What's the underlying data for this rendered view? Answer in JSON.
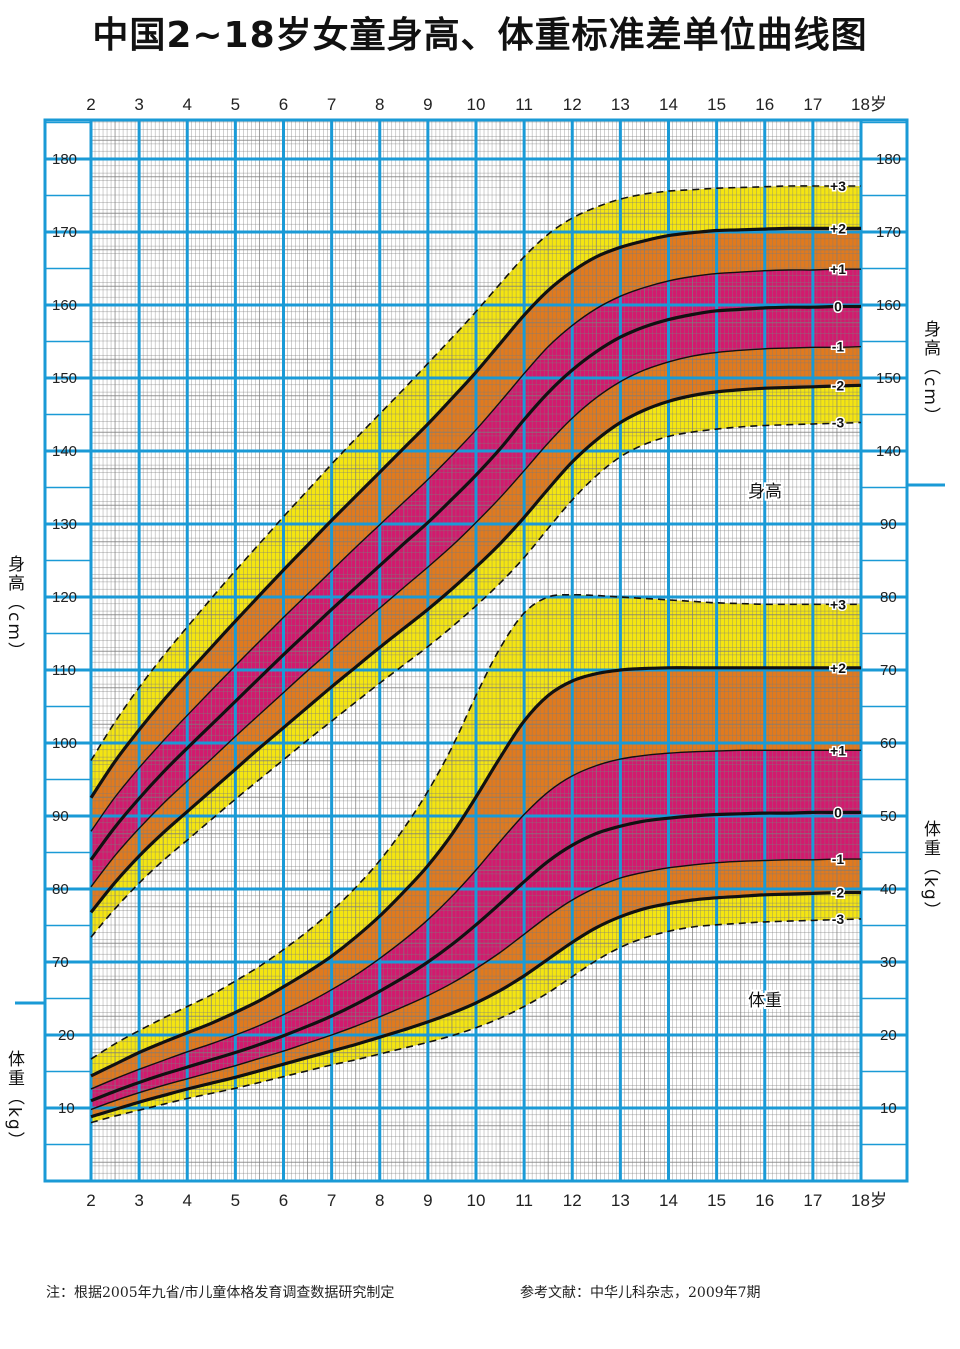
{
  "title": "中国2~18岁女童身高、体重标准差单位曲线图",
  "footnote_left": "注：根据2005年九省/市儿童体格发育调查数据研究制定",
  "footnote_right": "参考文献：中华儿科杂志，2009年7期",
  "colors": {
    "grid_major": "#1a9ad6",
    "grid_minor": "#7d7d7d",
    "band_outer": "#f4e512",
    "band_mid": "#e07a1e",
    "band_inner": "#d21a6e",
    "curve": "#111111"
  },
  "chart_data": {
    "type": "line",
    "title": "中国2~18岁女童身高、体重标准差单位曲线图",
    "x_ticks": [
      "2",
      "3",
      "4",
      "5",
      "6",
      "7",
      "8",
      "9",
      "10",
      "11",
      "12",
      "13",
      "14",
      "15",
      "16",
      "17",
      "18岁"
    ],
    "xlim": [
      2,
      18
    ],
    "x": [
      2,
      2.5,
      3,
      3.5,
      4,
      4.5,
      5,
      5.5,
      6,
      6.5,
      7,
      7.5,
      8,
      8.5,
      9,
      9.5,
      10,
      10.5,
      11,
      11.5,
      12,
      12.5,
      13,
      13.5,
      14,
      14.5,
      15,
      15.5,
      16,
      16.5,
      17,
      17.5,
      18
    ],
    "height": {
      "label": "身高",
      "ylabel": "身高（cm）",
      "ylim": [
        64,
        186
      ],
      "ticks": [
        70,
        80,
        90,
        100,
        110,
        120,
        130,
        140,
        150,
        160,
        170,
        180
      ],
      "series": [
        {
          "name": "+3",
          "values": [
            97.6,
            102.9,
            107.6,
            111.9,
            115.9,
            119.8,
            123.6,
            127.3,
            131.0,
            134.6,
            138.2,
            141.7,
            145.1,
            148.5,
            152.0,
            155.5,
            159.1,
            162.9,
            166.6,
            169.7,
            171.9,
            173.4,
            174.5,
            175.2,
            175.6,
            175.8,
            176.0,
            176.1,
            176.2,
            176.3,
            176.3,
            176.3,
            176.3
          ]
        },
        {
          "name": "+2",
          "values": [
            92.5,
            97.5,
            101.8,
            105.8,
            109.5,
            113.1,
            116.7,
            120.2,
            123.7,
            127.1,
            130.5,
            133.8,
            137.1,
            140.4,
            143.7,
            147.2,
            150.8,
            154.7,
            158.6,
            162.0,
            164.6,
            166.6,
            167.9,
            168.8,
            169.5,
            169.9,
            170.2,
            170.3,
            170.4,
            170.5,
            170.5,
            170.5,
            170.5
          ]
        },
        {
          "name": "+1",
          "values": [
            87.9,
            92.6,
            96.6,
            100.3,
            103.8,
            107.2,
            110.6,
            113.9,
            117.2,
            120.4,
            123.6,
            126.8,
            129.9,
            133.0,
            136.1,
            139.4,
            142.9,
            146.7,
            150.6,
            154.3,
            157.2,
            159.5,
            161.2,
            162.4,
            163.3,
            163.9,
            164.3,
            164.5,
            164.7,
            164.8,
            164.8,
            164.9,
            164.9
          ]
        },
        {
          "name": "0",
          "values": [
            84.0,
            88.5,
            92.4,
            96.0,
            99.3,
            102.5,
            105.7,
            108.9,
            112.1,
            115.2,
            118.3,
            121.3,
            124.3,
            127.3,
            130.2,
            133.4,
            136.7,
            140.3,
            144.3,
            148.0,
            151.1,
            153.6,
            155.6,
            157.0,
            158.0,
            158.7,
            159.2,
            159.4,
            159.6,
            159.7,
            159.7,
            159.8,
            159.8
          ]
        },
        {
          "name": "-1",
          "values": [
            80.3,
            84.6,
            88.3,
            91.7,
            94.8,
            97.8,
            100.9,
            103.9,
            106.9,
            109.9,
            112.8,
            115.7,
            118.5,
            121.3,
            124.1,
            127.0,
            130.2,
            133.6,
            137.3,
            141.1,
            144.5,
            147.3,
            149.5,
            151.1,
            152.2,
            153.0,
            153.5,
            153.8,
            154.0,
            154.1,
            154.2,
            154.2,
            154.3
          ]
        },
        {
          "name": "-2",
          "values": [
            76.8,
            80.9,
            84.5,
            87.7,
            90.6,
            93.5,
            96.4,
            99.3,
            102.1,
            104.9,
            107.7,
            110.4,
            113.1,
            115.7,
            118.3,
            121.1,
            124.1,
            127.3,
            130.9,
            134.8,
            138.5,
            141.5,
            143.9,
            145.6,
            146.8,
            147.6,
            148.1,
            148.4,
            148.6,
            148.7,
            148.8,
            148.9,
            149.0
          ]
        },
        {
          "name": "-3",
          "values": [
            73.4,
            77.3,
            80.8,
            83.9,
            86.7,
            89.5,
            92.3,
            95.0,
            97.7,
            100.4,
            103.0,
            105.6,
            108.2,
            110.7,
            113.2,
            115.9,
            118.8,
            121.9,
            125.4,
            129.4,
            133.3,
            136.6,
            139.2,
            140.9,
            142.0,
            142.6,
            143.0,
            143.3,
            143.5,
            143.6,
            143.7,
            143.8,
            143.9
          ]
        }
      ]
    },
    "weight": {
      "label": "体重",
      "ylabel": "体重（kg）",
      "ylim": [
        0,
        100
      ],
      "ticks_left": [
        10,
        20
      ],
      "ticks_right": [
        10,
        20,
        30,
        40,
        50,
        60,
        70,
        80,
        90
      ],
      "series": [
        {
          "name": "+3",
          "values": [
            16.7,
            18.8,
            20.6,
            22.3,
            23.9,
            25.5,
            27.4,
            29.4,
            31.7,
            34.2,
            37.0,
            40.2,
            43.9,
            48.3,
            53.4,
            59.4,
            66.5,
            73.0,
            77.8,
            80.0,
            80.3,
            80.2,
            80.0,
            79.8,
            79.6,
            79.4,
            79.2,
            79.1,
            79.0,
            79.0,
            79.0,
            79.0,
            79.0
          ]
        },
        {
          "name": "+2",
          "values": [
            14.4,
            16.0,
            17.6,
            19.0,
            20.3,
            21.6,
            23.1,
            24.7,
            26.6,
            28.6,
            30.8,
            33.4,
            36.3,
            39.6,
            43.2,
            47.5,
            52.6,
            58.0,
            63.0,
            66.5,
            68.5,
            69.5,
            70.0,
            70.2,
            70.3,
            70.3,
            70.3,
            70.3,
            70.3,
            70.3,
            70.3,
            70.3,
            70.3
          ]
        },
        {
          "name": "+1",
          "values": [
            12.6,
            14.0,
            15.3,
            16.5,
            17.7,
            18.8,
            20.0,
            21.3,
            22.8,
            24.4,
            26.2,
            28.2,
            30.5,
            33.0,
            35.8,
            39.0,
            42.6,
            46.5,
            50.2,
            53.3,
            55.5,
            56.9,
            57.8,
            58.3,
            58.6,
            58.8,
            58.9,
            59.0,
            59.0,
            59.0,
            59.0,
            59.0,
            59.0
          ]
        },
        {
          "name": "0",
          "values": [
            11.0,
            12.3,
            13.5,
            14.6,
            15.6,
            16.6,
            17.6,
            18.7,
            19.9,
            21.2,
            22.6,
            24.2,
            26.0,
            27.9,
            30.0,
            32.4,
            35.1,
            38.0,
            41.0,
            43.8,
            46.0,
            47.6,
            48.6,
            49.3,
            49.7,
            50.0,
            50.2,
            50.3,
            50.4,
            50.4,
            50.5,
            50.5,
            50.5
          ]
        },
        {
          "name": "-1",
          "values": [
            9.8,
            11.0,
            12.1,
            13.1,
            14.0,
            14.9,
            15.8,
            16.8,
            17.8,
            18.9,
            20.0,
            21.2,
            22.5,
            23.9,
            25.4,
            27.1,
            29.1,
            31.3,
            33.8,
            36.3,
            38.5,
            40.2,
            41.5,
            42.3,
            42.9,
            43.3,
            43.6,
            43.8,
            43.9,
            44.0,
            44.0,
            44.1,
            44.1
          ]
        },
        {
          "name": "-2",
          "values": [
            8.8,
            9.8,
            10.8,
            11.7,
            12.6,
            13.4,
            14.2,
            15.1,
            16.0,
            16.9,
            17.8,
            18.7,
            19.7,
            20.7,
            21.8,
            23.0,
            24.4,
            26.1,
            28.1,
            30.4,
            32.7,
            34.7,
            36.2,
            37.3,
            38.0,
            38.5,
            38.8,
            39.0,
            39.2,
            39.3,
            39.4,
            39.5,
            39.5
          ]
        },
        {
          "name": "-3",
          "values": [
            8.0,
            8.9,
            9.7,
            10.5,
            11.3,
            12.0,
            12.7,
            13.5,
            14.3,
            15.1,
            15.9,
            16.6,
            17.4,
            18.2,
            19.0,
            19.9,
            21.0,
            22.3,
            23.9,
            25.8,
            28.0,
            30.2,
            32.0,
            33.3,
            34.2,
            34.8,
            35.1,
            35.3,
            35.5,
            35.6,
            35.7,
            35.8,
            35.9
          ]
        }
      ]
    }
  }
}
